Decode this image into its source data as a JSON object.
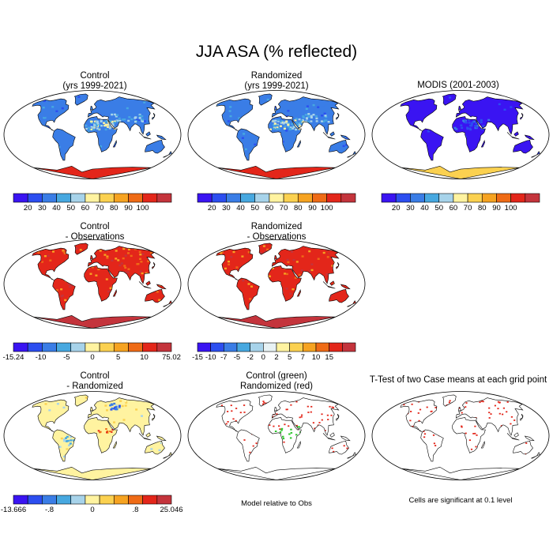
{
  "title": "JJA ASA (% reflected)",
  "panels": [
    {
      "id": "control",
      "title_lines": [
        "Control",
        "(yrs 1999-2021)"
      ],
      "style": "abs"
    },
    {
      "id": "randomized",
      "title_lines": [
        "Randomized",
        "(yrs 1999-2021)"
      ],
      "style": "abs"
    },
    {
      "id": "modis",
      "title_lines": [
        "MODIS (2001-2003)"
      ],
      "style": "modis"
    },
    {
      "id": "control-obs",
      "title_lines": [
        "Control",
        "- Observations"
      ],
      "style": "diffobs"
    },
    {
      "id": "randomized-obs",
      "title_lines": [
        "Randomized",
        "- Observations"
      ],
      "style": "diffobs"
    },
    {
      "id": "control-randomized",
      "title_lines": [
        "Control",
        "- Randomized"
      ],
      "style": "diffcr"
    },
    {
      "id": "green-red",
      "title_lines": [
        "Control (green)",
        "Randomized (red)"
      ],
      "style": "gr"
    },
    {
      "id": "ttest",
      "title_lines": [
        "T-Test of two Case means at each grid point"
      ],
      "style": "tt"
    }
  ],
  "colorbars": [
    {
      "id": "cb-control",
      "labels": [
        "20",
        "30",
        "40",
        "50",
        "60",
        "70",
        "80",
        "90",
        "100"
      ],
      "label_mode": "internal",
      "colors": [
        "#3a14f2",
        "#2c4ef0",
        "#3a7de6",
        "#47a8e0",
        "#a7d3ea",
        "#fff3a0",
        "#fbd150",
        "#f6a321",
        "#ef6b16",
        "#e3261a",
        "#c4343c"
      ]
    },
    {
      "id": "cb-randomized",
      "labels": [
        "20",
        "30",
        "40",
        "50",
        "60",
        "70",
        "80",
        "90",
        "100"
      ],
      "label_mode": "internal",
      "colors": [
        "#3a14f2",
        "#2c4ef0",
        "#3a7de6",
        "#47a8e0",
        "#a7d3ea",
        "#fff3a0",
        "#fbd150",
        "#f6a321",
        "#ef6b16",
        "#e3261a",
        "#c4343c"
      ]
    },
    {
      "id": "cb-modis",
      "labels": [
        "20",
        "30",
        "40",
        "50",
        "60",
        "70",
        "80",
        "90",
        "100"
      ],
      "label_mode": "internal",
      "colors": [
        "#3a14f2",
        "#2c4ef0",
        "#3a7de6",
        "#47a8e0",
        "#a7d3ea",
        "#fff3a0",
        "#fbd150",
        "#f6a321",
        "#ef6b16",
        "#e3261a",
        "#c4343c"
      ]
    },
    {
      "id": "cb-control-obs",
      "labels": [
        "-15.24",
        "-10",
        "-5",
        "0",
        "5",
        "10",
        "75.02"
      ],
      "label_mode": "ends",
      "colors": [
        "#3a14f2",
        "#2c4ef0",
        "#3a7de6",
        "#47a8e0",
        "#a7d3ea",
        "#fff3a0",
        "#fbd150",
        "#f6a321",
        "#ef6b16",
        "#e3261a",
        "#c4343c"
      ]
    },
    {
      "id": "cb-randomized-obs",
      "labels": [
        "-15",
        "-10",
        "-7",
        "-5",
        "-2",
        "0",
        "2",
        "5",
        "7",
        "10",
        "15"
      ],
      "label_mode": "internal",
      "colors": [
        "#3a14f2",
        "#2c4ef0",
        "#3a7de6",
        "#47a8e0",
        "#a7d3ea",
        "#e8f2f4",
        "#fff3a0",
        "#fbd150",
        "#f6a321",
        "#ef6b16",
        "#e3261a",
        "#c4343c"
      ]
    },
    {
      "id": "cb-control-randomized",
      "labels": [
        "-13.666",
        "-.8",
        "0",
        ".8",
        "25.046"
      ],
      "label_mode": "ends",
      "colors": [
        "#3a14f2",
        "#2c4ef0",
        "#3a7de6",
        "#47a8e0",
        "#a7d3ea",
        "#fff3a0",
        "#fbd150",
        "#f6a321",
        "#ef6b16",
        "#e3261a",
        "#c4343c"
      ]
    }
  ],
  "notes": {
    "green_red": "Model relative to Obs",
    "ttest": "Cells are significant at 0.1 level"
  }
}
